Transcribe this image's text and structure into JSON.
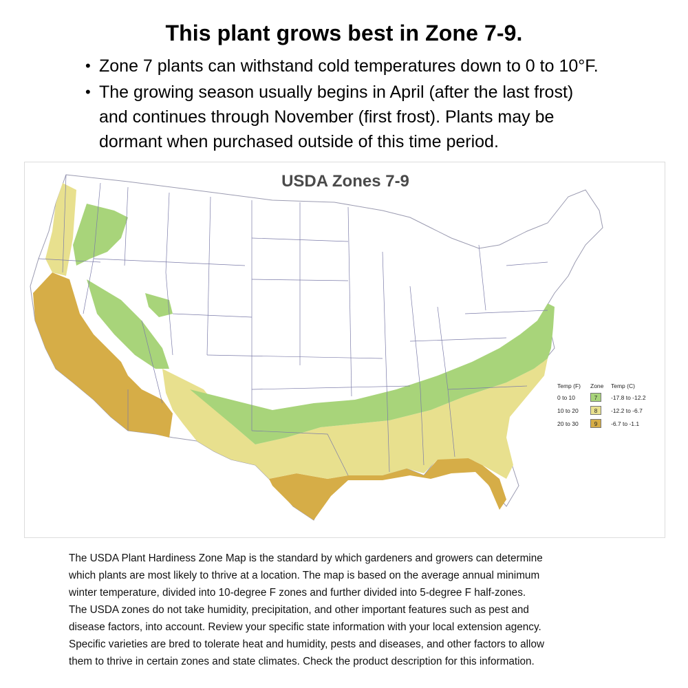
{
  "headline": "This plant grows best in Zone 7-9.",
  "bullets": [
    [
      "Zone 7 plants can withstand cold temperatures down to 0 to 10°F."
    ],
    [
      "The growing season usually begins in April (after the last frost)",
      "and continues through November (first frost). Plants may be",
      "dormant when purchased outside of this time period."
    ]
  ],
  "map": {
    "title": "USDA Zones 7-9",
    "legend": {
      "header": {
        "temp_f": "Temp (F)",
        "zone": "Zone",
        "temp_c": "Temp (C)"
      },
      "rows": [
        {
          "temp_f": "0 to 10",
          "zone": "7",
          "temp_c": "-17.8 to -12.2",
          "color": "#a8d47a"
        },
        {
          "temp_f": "10 to 20",
          "zone": "8",
          "temp_c": "-12.2 to -6.7",
          "color": "#e8e08e"
        },
        {
          "temp_f": "20 to 30",
          "zone": "9",
          "temp_c": "-6.7 to -1.1",
          "color": "#d6ad47"
        }
      ]
    }
  },
  "footer_lines": [
    "The USDA Plant Hardiness Zone Map is the standard by which gardeners and growers can determine",
    "which plants are most likely to thrive at a location. The map is based on the average annual minimum",
    "winter temperature, divided into 10-degree F zones and further divided into 5-degree F half-zones.",
    "The USDA zones do not take humidity, precipitation, and other important features such as pest and",
    "disease factors, into account. Review your specific state information with your local extension agency.",
    "Specific varieties are bred to tolerate heat and humidity, pests and diseases, and other factors to allow",
    "them to thrive in certain zones and state climates. Check the product description for this information."
  ]
}
